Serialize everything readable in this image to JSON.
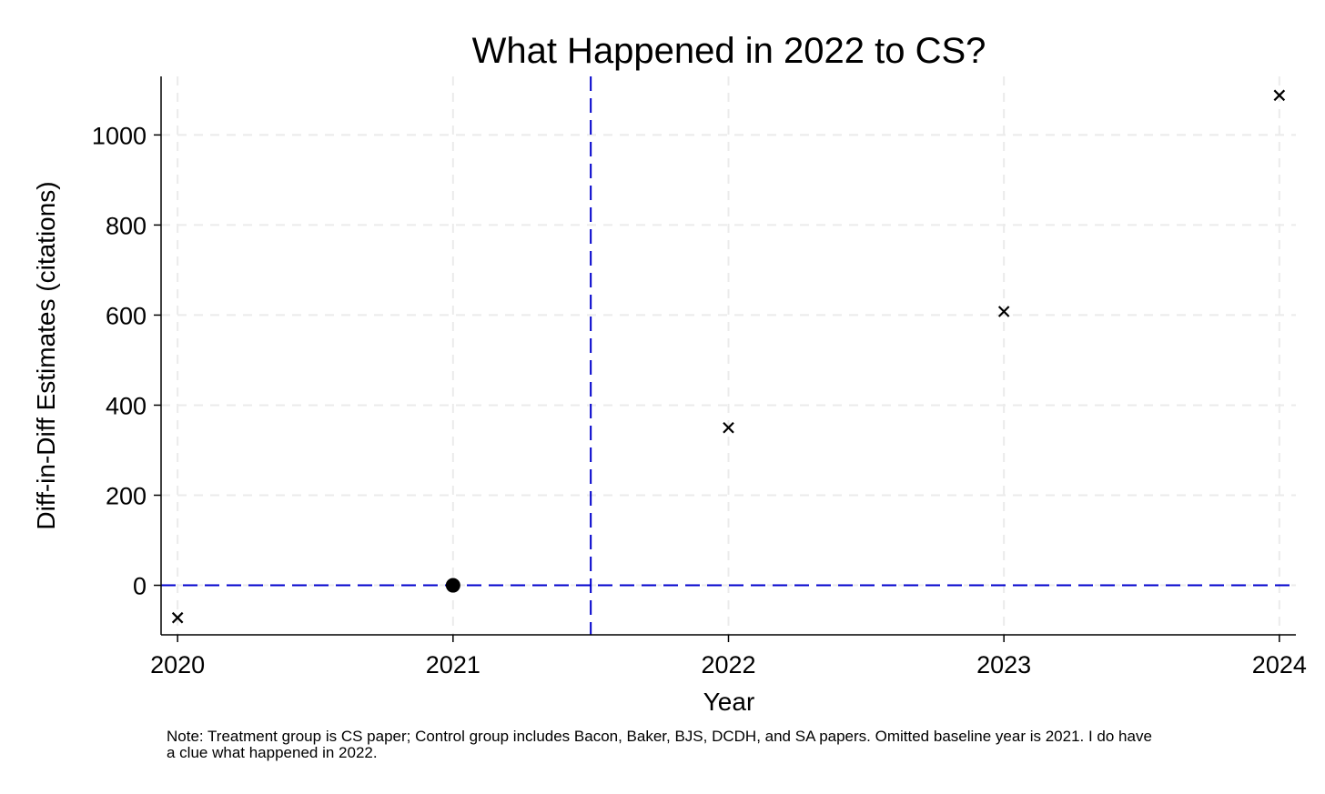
{
  "chart_data": {
    "type": "scatter",
    "title": "What Happened in 2022 to CS?",
    "xlabel": "Year",
    "ylabel": "Diff-in-Diff Estimates (citations)",
    "xlim": [
      2019.94,
      2024.06
    ],
    "ylim": [
      -110,
      1130
    ],
    "x_ticks": [
      2020,
      2021,
      2022,
      2023,
      2024
    ],
    "y_ticks": [
      0,
      200,
      400,
      600,
      800,
      1000
    ],
    "grid": true,
    "series": [
      {
        "marker": "x",
        "points": [
          {
            "x": 2020,
            "y": -72
          },
          {
            "x": 2022,
            "y": 350
          },
          {
            "x": 2023,
            "y": 608
          },
          {
            "x": 2024,
            "y": 1088
          }
        ]
      },
      {
        "marker": "circle",
        "points": [
          {
            "x": 2021,
            "y": 0
          }
        ]
      }
    ],
    "reference_lines": [
      {
        "orientation": "horizontal",
        "value": 0,
        "style": "dashed",
        "color": "#0000cc"
      },
      {
        "orientation": "vertical",
        "value": 2021.5,
        "style": "dashed",
        "color": "#0000cc"
      }
    ],
    "note_lines": [
      "Note: Treatment group is CS paper; Control group includes Bacon, Baker, BJS, DCDH, and SA papers. Omitted baseline year is 2021. I do have",
      "a clue what happened in 2022."
    ]
  },
  "colors": {
    "grid": "#ebebeb",
    "axis": "#000000",
    "marker": "#000000",
    "reference": "#0000cc"
  }
}
